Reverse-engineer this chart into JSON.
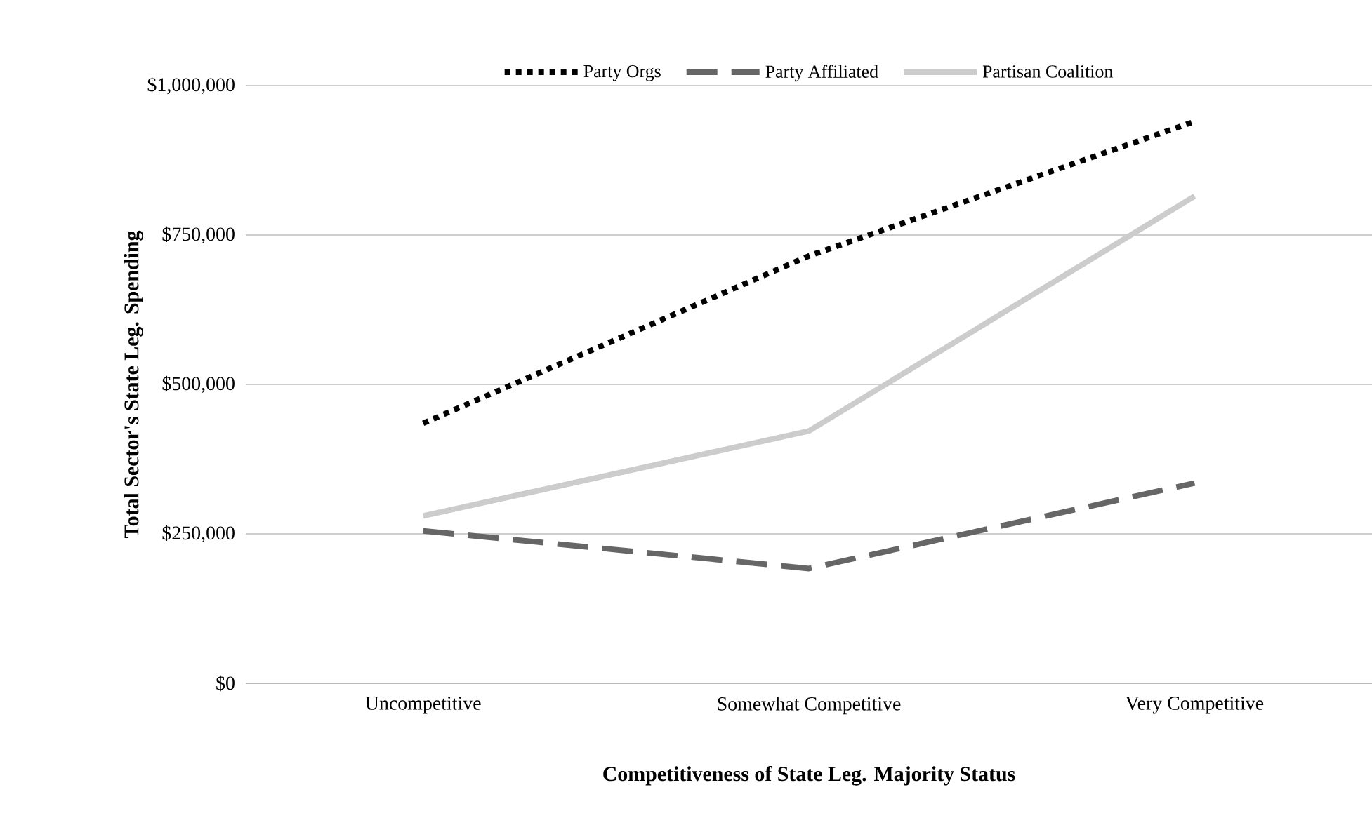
{
  "chart_data": {
    "type": "line",
    "xlabel": "Competitiveness of State Leg. Majority Status",
    "ylabel": "Total Sector's State Leg. Spending",
    "categories": [
      "Uncompetitive",
      "Somewhat Competitive",
      "Very Competitive"
    ],
    "series": [
      {
        "name": "Party Orgs",
        "color": "#000000",
        "line_style": "dotted",
        "values": [
          435000,
          715000,
          940000
        ]
      },
      {
        "name": "Party Affiliated",
        "color": "#666666",
        "line_style": "dashed",
        "values": [
          255000,
          192000,
          335000
        ]
      },
      {
        "name": "Partisan Coalition",
        "color": "#cccccc",
        "line_style": "solid",
        "values": [
          280000,
          422000,
          815000
        ]
      }
    ],
    "ylim": [
      0,
      1000000
    ],
    "yticks": [
      {
        "value": 0,
        "label": "$0"
      },
      {
        "value": 250000,
        "label": "$250,000"
      },
      {
        "value": 500000,
        "label": "$500,000"
      },
      {
        "value": 750000,
        "label": "$750,000"
      },
      {
        "value": 1000000,
        "label": "$1,000,000"
      }
    ],
    "grid": "y",
    "legend": "top",
    "marker": "none"
  }
}
